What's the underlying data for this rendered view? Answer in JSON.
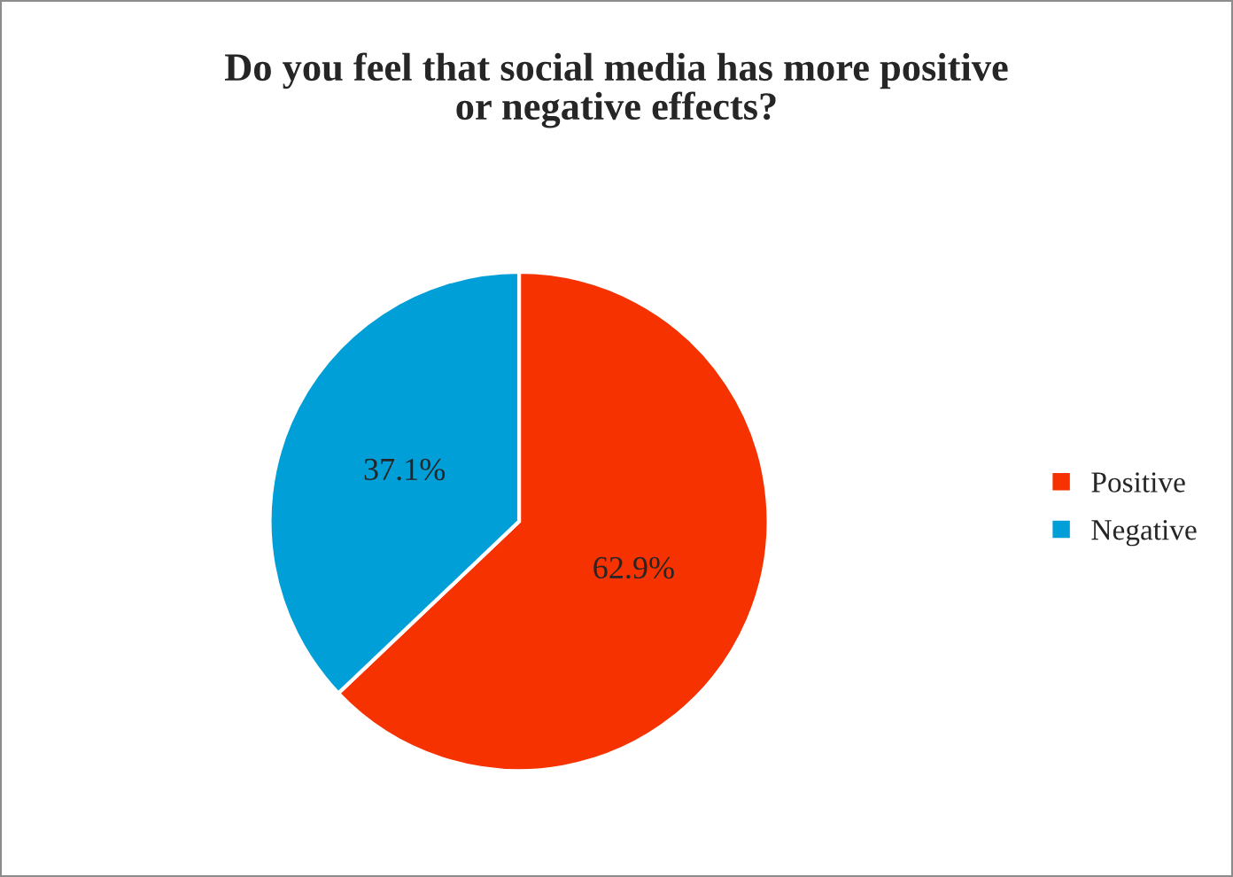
{
  "chart_data": {
    "type": "pie",
    "title": "Do you feel that social media has more positive\nor negative effects?",
    "categories": [
      "Positive",
      "Negative"
    ],
    "values": [
      62.9,
      37.1
    ],
    "colors": [
      "#f53200",
      "#009fd8"
    ],
    "value_labels": [
      "62.9%",
      "37.1%"
    ],
    "legend": "right"
  }
}
